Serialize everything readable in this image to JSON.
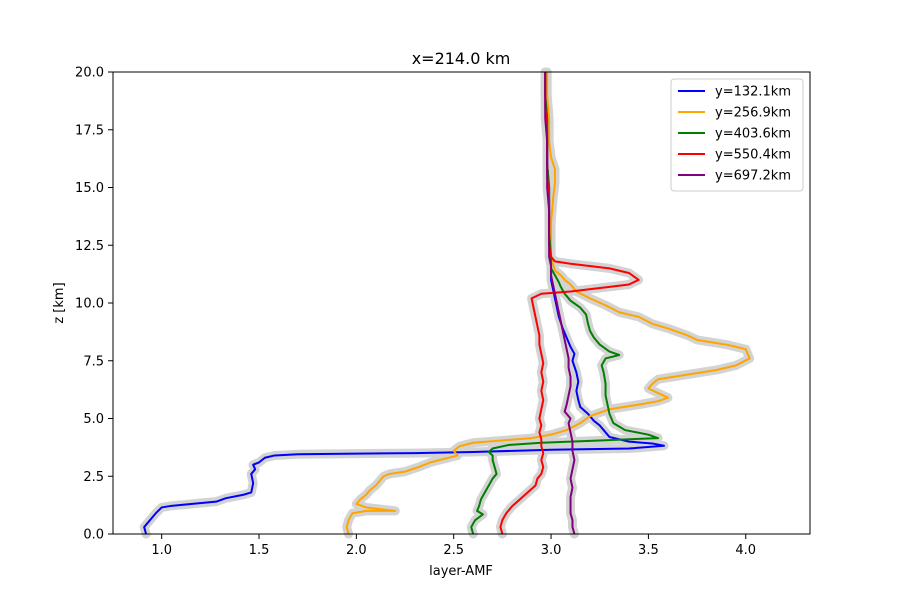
{
  "chart_data": {
    "type": "line",
    "title": "x=214.0 km",
    "xlabel": "layer-AMF",
    "ylabel": "z [km]",
    "xlim": [
      0.75,
      4.33
    ],
    "ylim": [
      0,
      20
    ],
    "xticks": [
      1.0,
      1.5,
      2.0,
      2.5,
      3.0,
      3.5,
      4.0
    ],
    "xtick_labels": [
      "1.0",
      "1.5",
      "2.0",
      "2.5",
      "3.0",
      "3.5",
      "4.0"
    ],
    "yticks": [
      0,
      2.5,
      5,
      7.5,
      10,
      12.5,
      15,
      17.5,
      20
    ],
    "ytick_labels": [
      "0.0",
      "2.5",
      "5.0",
      "7.5",
      "10.0",
      "12.5",
      "15.0",
      "17.5",
      "20.0"
    ],
    "grid": false,
    "legend_position": "top-right",
    "uncertainty_band_color": "#d3d3d3",
    "series": [
      {
        "name": "y=132.1km",
        "color": "#0000ff",
        "points": [
          [
            0.92,
            0.0
          ],
          [
            0.91,
            0.3
          ],
          [
            0.94,
            0.6
          ],
          [
            0.97,
            0.9
          ],
          [
            1.0,
            1.15
          ],
          [
            1.05,
            1.22
          ],
          [
            1.15,
            1.3
          ],
          [
            1.28,
            1.4
          ],
          [
            1.33,
            1.55
          ],
          [
            1.42,
            1.7
          ],
          [
            1.46,
            1.8
          ],
          [
            1.47,
            2.2
          ],
          [
            1.46,
            2.6
          ],
          [
            1.48,
            2.8
          ],
          [
            1.47,
            3.0
          ],
          [
            1.5,
            3.1
          ],
          [
            1.53,
            3.3
          ],
          [
            1.58,
            3.4
          ],
          [
            1.7,
            3.45
          ],
          [
            2.0,
            3.48
          ],
          [
            2.3,
            3.5
          ],
          [
            2.6,
            3.55
          ],
          [
            3.0,
            3.65
          ],
          [
            3.4,
            3.7
          ],
          [
            3.58,
            3.82
          ],
          [
            3.52,
            3.92
          ],
          [
            3.4,
            4.0
          ],
          [
            3.3,
            4.2
          ],
          [
            3.27,
            4.5
          ],
          [
            3.25,
            4.7
          ],
          [
            3.22,
            4.9
          ],
          [
            3.19,
            5.2
          ],
          [
            3.15,
            5.5
          ],
          [
            3.14,
            5.8
          ],
          [
            3.13,
            6.2
          ],
          [
            3.14,
            6.6
          ],
          [
            3.13,
            7.0
          ],
          [
            3.11,
            7.5
          ],
          [
            3.12,
            7.8
          ],
          [
            3.1,
            8.1
          ],
          [
            3.08,
            8.5
          ],
          [
            3.06,
            8.9
          ],
          [
            3.04,
            9.4
          ],
          [
            3.03,
            9.8
          ],
          [
            3.02,
            10.2
          ],
          [
            3.01,
            10.6
          ],
          [
            3.0,
            11.0
          ],
          [
            3.0,
            11.5
          ],
          [
            3.0,
            12.0
          ],
          [
            2.99,
            13.0
          ],
          [
            2.99,
            14.0
          ],
          [
            2.99,
            15.0
          ],
          [
            2.98,
            16.0
          ],
          [
            2.98,
            17.0
          ],
          [
            2.98,
            18.0
          ],
          [
            2.97,
            19.0
          ],
          [
            2.97,
            20.0
          ]
        ]
      },
      {
        "name": "y=256.9km",
        "color": "#ffa500",
        "points": [
          [
            1.96,
            0.0
          ],
          [
            1.95,
            0.3
          ],
          [
            1.96,
            0.6
          ],
          [
            1.98,
            0.9
          ],
          [
            2.05,
            1.0
          ],
          [
            2.2,
            1.0
          ],
          [
            2.05,
            1.15
          ],
          [
            2.0,
            1.3
          ],
          [
            2.02,
            1.5
          ],
          [
            2.05,
            1.7
          ],
          [
            2.07,
            1.9
          ],
          [
            2.1,
            2.1
          ],
          [
            2.12,
            2.3
          ],
          [
            2.14,
            2.5
          ],
          [
            2.17,
            2.6
          ],
          [
            2.25,
            2.7
          ],
          [
            2.32,
            2.9
          ],
          [
            2.38,
            3.1
          ],
          [
            2.45,
            3.25
          ],
          [
            2.52,
            3.4
          ],
          [
            2.5,
            3.6
          ],
          [
            2.53,
            3.8
          ],
          [
            2.6,
            3.95
          ],
          [
            2.75,
            4.05
          ],
          [
            2.9,
            4.15
          ],
          [
            3.0,
            4.3
          ],
          [
            3.08,
            4.5
          ],
          [
            3.15,
            4.8
          ],
          [
            3.2,
            5.1
          ],
          [
            3.3,
            5.4
          ],
          [
            3.45,
            5.6
          ],
          [
            3.55,
            5.75
          ],
          [
            3.6,
            5.9
          ],
          [
            3.55,
            6.1
          ],
          [
            3.5,
            6.3
          ],
          [
            3.52,
            6.5
          ],
          [
            3.55,
            6.7
          ],
          [
            3.7,
            6.9
          ],
          [
            3.85,
            7.1
          ],
          [
            3.95,
            7.3
          ],
          [
            4.02,
            7.6
          ],
          [
            4.0,
            8.0
          ],
          [
            3.9,
            8.2
          ],
          [
            3.75,
            8.4
          ],
          [
            3.7,
            8.6
          ],
          [
            3.6,
            8.9
          ],
          [
            3.52,
            9.1
          ],
          [
            3.45,
            9.4
          ],
          [
            3.35,
            9.6
          ],
          [
            3.28,
            9.9
          ],
          [
            3.2,
            10.2
          ],
          [
            3.13,
            10.5
          ],
          [
            3.1,
            10.8
          ],
          [
            3.07,
            11.0
          ],
          [
            3.05,
            11.2
          ],
          [
            3.02,
            11.4
          ],
          [
            3.01,
            11.7
          ],
          [
            3.0,
            12.0
          ],
          [
            3.0,
            12.5
          ],
          [
            3.0,
            13.5
          ],
          [
            3.01,
            14.5
          ],
          [
            3.02,
            15.2
          ],
          [
            3.02,
            15.8
          ],
          [
            3.0,
            16.3
          ],
          [
            2.99,
            17.0
          ],
          [
            2.99,
            18.0
          ],
          [
            2.98,
            19.0
          ],
          [
            2.98,
            20.0
          ]
        ]
      },
      {
        "name": "y=403.6km",
        "color": "#008000",
        "points": [
          [
            2.6,
            0.0
          ],
          [
            2.59,
            0.3
          ],
          [
            2.61,
            0.6
          ],
          [
            2.65,
            0.85
          ],
          [
            2.62,
            1.0
          ],
          [
            2.63,
            1.2
          ],
          [
            2.64,
            1.5
          ],
          [
            2.66,
            1.8
          ],
          [
            2.68,
            2.1
          ],
          [
            2.7,
            2.4
          ],
          [
            2.72,
            2.6
          ],
          [
            2.71,
            2.9
          ],
          [
            2.7,
            3.2
          ],
          [
            2.7,
            3.4
          ],
          [
            2.68,
            3.55
          ],
          [
            2.7,
            3.7
          ],
          [
            2.78,
            3.85
          ],
          [
            2.95,
            3.95
          ],
          [
            3.25,
            4.05
          ],
          [
            3.55,
            4.15
          ],
          [
            3.5,
            4.3
          ],
          [
            3.38,
            4.5
          ],
          [
            3.32,
            4.8
          ],
          [
            3.3,
            5.2
          ],
          [
            3.29,
            5.6
          ],
          [
            3.28,
            6.0
          ],
          [
            3.28,
            6.5
          ],
          [
            3.27,
            7.0
          ],
          [
            3.26,
            7.3
          ],
          [
            3.28,
            7.6
          ],
          [
            3.35,
            7.75
          ],
          [
            3.3,
            7.9
          ],
          [
            3.25,
            8.2
          ],
          [
            3.22,
            8.5
          ],
          [
            3.2,
            8.8
          ],
          [
            3.19,
            9.1
          ],
          [
            3.18,
            9.5
          ],
          [
            3.15,
            9.8
          ],
          [
            3.1,
            10.1
          ],
          [
            3.07,
            10.4
          ],
          [
            3.05,
            10.7
          ],
          [
            3.04,
            10.9
          ],
          [
            3.02,
            11.2
          ],
          [
            3.0,
            11.5
          ],
          [
            3.0,
            12.0
          ],
          [
            2.99,
            13.0
          ],
          [
            2.99,
            14.0
          ],
          [
            2.99,
            15.0
          ],
          [
            2.98,
            16.0
          ],
          [
            2.98,
            17.0
          ],
          [
            2.98,
            18.0
          ],
          [
            2.97,
            19.0
          ],
          [
            2.97,
            20.0
          ]
        ]
      },
      {
        "name": "y=550.4km",
        "color": "#ff0000",
        "points": [
          [
            2.75,
            0.0
          ],
          [
            2.74,
            0.3
          ],
          [
            2.75,
            0.6
          ],
          [
            2.77,
            0.9
          ],
          [
            2.8,
            1.2
          ],
          [
            2.84,
            1.5
          ],
          [
            2.88,
            1.8
          ],
          [
            2.92,
            2.1
          ],
          [
            2.93,
            2.4
          ],
          [
            2.95,
            2.6
          ],
          [
            2.96,
            2.9
          ],
          [
            2.95,
            3.2
          ],
          [
            2.96,
            3.5
          ],
          [
            2.95,
            3.8
          ],
          [
            2.95,
            4.1
          ],
          [
            2.94,
            4.4
          ],
          [
            2.95,
            4.7
          ],
          [
            2.94,
            5.0
          ],
          [
            2.95,
            5.4
          ],
          [
            2.96,
            5.8
          ],
          [
            2.95,
            6.2
          ],
          [
            2.96,
            6.6
          ],
          [
            2.95,
            7.0
          ],
          [
            2.96,
            7.4
          ],
          [
            2.95,
            7.8
          ],
          [
            2.94,
            8.2
          ],
          [
            2.94,
            8.6
          ],
          [
            2.93,
            9.0
          ],
          [
            2.92,
            9.4
          ],
          [
            2.91,
            9.8
          ],
          [
            2.9,
            10.2
          ],
          [
            2.95,
            10.4
          ],
          [
            3.1,
            10.5
          ],
          [
            3.3,
            10.7
          ],
          [
            3.4,
            10.8
          ],
          [
            3.45,
            11.0
          ],
          [
            3.4,
            11.3
          ],
          [
            3.3,
            11.5
          ],
          [
            3.1,
            11.7
          ],
          [
            3.02,
            11.8
          ],
          [
            3.0,
            12.0
          ],
          [
            2.99,
            12.5
          ],
          [
            2.99,
            13.5
          ],
          [
            2.99,
            14.5
          ],
          [
            2.98,
            15.5
          ],
          [
            2.98,
            16.5
          ],
          [
            2.98,
            17.5
          ],
          [
            2.97,
            18.5
          ],
          [
            2.97,
            19.5
          ],
          [
            2.97,
            20.0
          ]
        ]
      },
      {
        "name": "y=697.2km",
        "color": "#800080",
        "points": [
          [
            3.12,
            0.0
          ],
          [
            3.11,
            0.3
          ],
          [
            3.11,
            0.6
          ],
          [
            3.1,
            0.9
          ],
          [
            3.1,
            1.2
          ],
          [
            3.1,
            1.6
          ],
          [
            3.11,
            2.0
          ],
          [
            3.1,
            2.4
          ],
          [
            3.11,
            2.8
          ],
          [
            3.12,
            3.2
          ],
          [
            3.11,
            3.6
          ],
          [
            3.11,
            4.0
          ],
          [
            3.1,
            4.4
          ],
          [
            3.09,
            4.8
          ],
          [
            3.1,
            5.0
          ],
          [
            3.07,
            5.3
          ],
          [
            3.08,
            5.6
          ],
          [
            3.09,
            6.0
          ],
          [
            3.1,
            6.4
          ],
          [
            3.1,
            6.8
          ],
          [
            3.09,
            7.2
          ],
          [
            3.09,
            7.6
          ],
          [
            3.08,
            8.0
          ],
          [
            3.07,
            8.4
          ],
          [
            3.06,
            8.8
          ],
          [
            3.05,
            9.2
          ],
          [
            3.04,
            9.6
          ],
          [
            3.03,
            10.0
          ],
          [
            3.02,
            10.4
          ],
          [
            3.01,
            10.8
          ],
          [
            3.0,
            11.2
          ],
          [
            3.0,
            11.6
          ],
          [
            2.99,
            12.0
          ],
          [
            2.99,
            13.0
          ],
          [
            2.99,
            14.0
          ],
          [
            2.98,
            15.0
          ],
          [
            2.98,
            16.0
          ],
          [
            2.98,
            17.0
          ],
          [
            2.97,
            18.0
          ],
          [
            2.97,
            19.0
          ],
          [
            2.97,
            20.0
          ]
        ]
      }
    ]
  }
}
